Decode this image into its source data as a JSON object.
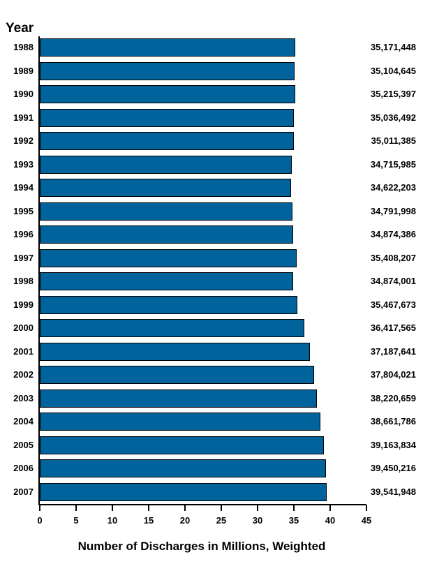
{
  "chart": {
    "y_axis_title": "Year",
    "x_axis_title": "Number of Discharges in Millions, Weighted"
  },
  "chart_data": {
    "type": "bar",
    "orientation": "horizontal",
    "title": "",
    "xlabel": "Number of Discharges in Millions, Weighted",
    "ylabel": "Year",
    "categories": [
      "1988",
      "1989",
      "1990",
      "1991",
      "1992",
      "1993",
      "1994",
      "1995",
      "1996",
      "1997",
      "1998",
      "1999",
      "2000",
      "2001",
      "2002",
      "2003",
      "2004",
      "2005",
      "2006",
      "2007"
    ],
    "values": [
      35171448,
      35104645,
      35215397,
      35036492,
      35011385,
      34715985,
      34622203,
      34791998,
      34874386,
      35408207,
      34874001,
      35467673,
      36417565,
      37187641,
      37804021,
      38220659,
      38661786,
      39163834,
      39450216,
      39541948
    ],
    "value_labels": [
      "35,171,448",
      "35,104,645",
      "35,215,397",
      "35,036,492",
      "35,011,385",
      "34,715,985",
      "34,622,203",
      "34,791,998",
      "34,874,386",
      "35,408,207",
      "34,874,001",
      "35,467,673",
      "36,417,565",
      "37,187,641",
      "37,804,021",
      "38,220,659",
      "38,661,786",
      "39,163,834",
      "39,450,216",
      "39,541,948"
    ],
    "values_unit": "millions",
    "xlim": [
      0,
      45
    ],
    "x_ticks": [
      0,
      5,
      10,
      15,
      20,
      25,
      30,
      35,
      40,
      45
    ],
    "grid": false,
    "legend": false,
    "bar_color": "#01639B",
    "bar_border_color": "#000000",
    "text_color": "#000000",
    "background_color": "#FFFFFF"
  }
}
